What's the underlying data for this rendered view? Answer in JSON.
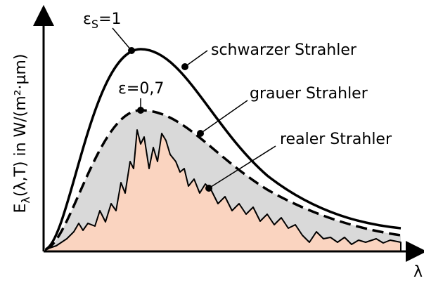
{
  "labels": {
    "black": {
      "base": "ε",
      "sub": "S",
      "rest": "=1"
    },
    "grey": "ε=0,7",
    "black_name": "schwarzer Strahler",
    "grey_name": "grauer Strahler",
    "real_name": "realer Strahler"
  },
  "axes": {
    "y_label": {
      "base": "E",
      "sub": "λ",
      "rest": "(λ,T) in W/(m²·µm)"
    },
    "x_label": "λ"
  }
}
